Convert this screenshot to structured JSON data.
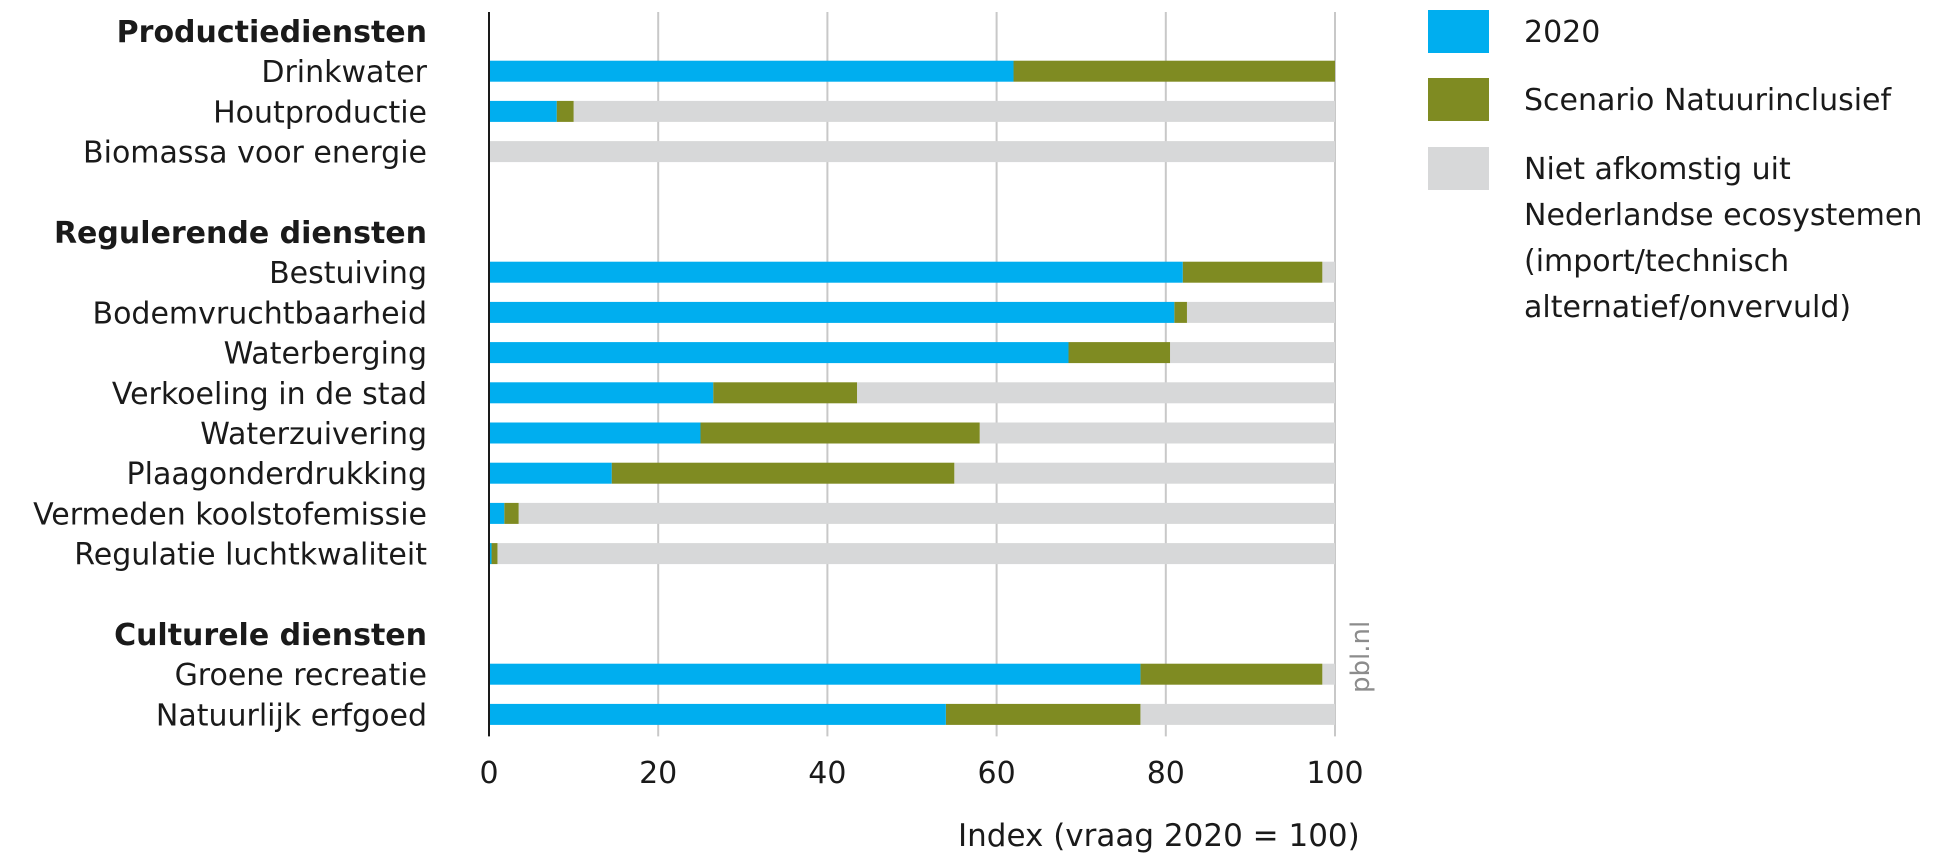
{
  "colors": {
    "y2020": "#00aeef",
    "scenario": "#7f8b22",
    "remainder": "#d7d8d9",
    "grid": "#c8c8c8",
    "axis": "#1a1a1a"
  },
  "legend": {
    "items": [
      {
        "label": "2020",
        "color": "#00aeef"
      },
      {
        "label": "Scenario Natuurinclusief",
        "color": "#7f8b22"
      },
      {
        "label": "Niet afkomstig uit Nederlandse ecosystemen (import/technisch alternatief/onvervuld)",
        "color": "#d7d8d9",
        "lines": [
          "Niet afkomstig uit",
          "Nederlandse ecosystemen",
          "(import/technisch",
          " alternatief/onvervuld)"
        ]
      }
    ]
  },
  "watermark": "pbl.nl",
  "chart_data": {
    "type": "bar",
    "orientation": "horizontal",
    "stacked": true,
    "xlabel": "Index (vraag 2020 = 100)",
    "xlim": [
      0,
      100
    ],
    "xticks": [
      0,
      20,
      40,
      60,
      80,
      100
    ],
    "grid": true,
    "legend_position": "top-right",
    "groups": [
      {
        "heading": "Productiediensten",
        "categories": [
          {
            "name": "Drinkwater",
            "y2020": 62,
            "scenario": 100
          },
          {
            "name": "Houtproductie",
            "y2020": 8,
            "scenario": 10
          },
          {
            "name": "Biomassa voor energie",
            "y2020": 0,
            "scenario": 0
          }
        ]
      },
      {
        "heading": "Regulerende diensten",
        "categories": [
          {
            "name": "Bestuiving",
            "y2020": 82,
            "scenario": 98.5
          },
          {
            "name": "Bodemvruchtbaarheid",
            "y2020": 81,
            "scenario": 82.5
          },
          {
            "name": "Waterberging",
            "y2020": 68.5,
            "scenario": 80.5
          },
          {
            "name": "Verkoeling in de stad",
            "y2020": 26.5,
            "scenario": 43.5
          },
          {
            "name": "Waterzuivering",
            "y2020": 25,
            "scenario": 58
          },
          {
            "name": "Plaagonderdrukking",
            "y2020": 14.5,
            "scenario": 55
          },
          {
            "name": "Vermeden koolstofemissie",
            "y2020": 1.8,
            "scenario": 3.5
          },
          {
            "name": "Regulatie luchtkwaliteit",
            "y2020": 0.3,
            "scenario": 1
          }
        ]
      },
      {
        "heading": "Culturele diensten",
        "categories": [
          {
            "name": "Groene recreatie",
            "y2020": 77,
            "scenario": 98.5
          },
          {
            "name": "Natuurlijk erfgoed",
            "y2020": 54,
            "scenario": 77
          }
        ]
      }
    ],
    "series": [
      {
        "name": "2020",
        "key": "y2020",
        "note": "cumulative end value"
      },
      {
        "name": "Scenario Natuurinclusief",
        "key": "scenario",
        "note": "cumulative end value"
      },
      {
        "name": "Niet afkomstig uit Nederlandse ecosystemen (import/technisch alternatief/onvervuld)",
        "key": "remainder"
      }
    ]
  }
}
